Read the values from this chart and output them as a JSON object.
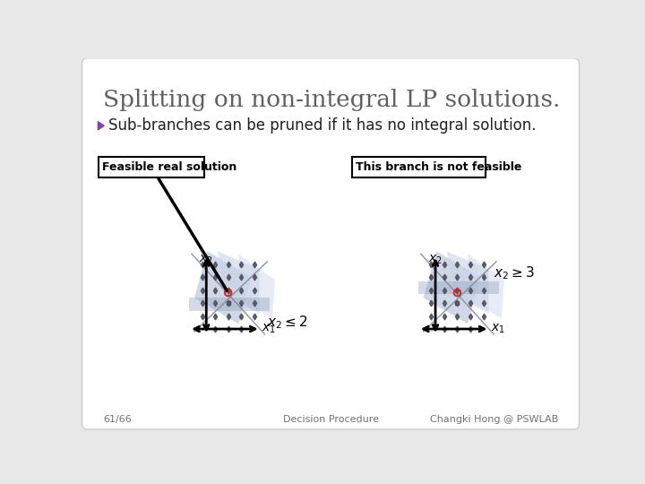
{
  "title": "Splitting on non-integral LP solutions.",
  "subtitle": "Sub-branches can be pruned if it has no integral solution.",
  "bg_color": "#e8e8e8",
  "slide_bg": "#ffffff",
  "title_color": "#606060",
  "subtitle_color": "#202020",
  "left_label": "Feasible real solution",
  "right_label": "This branch is not feasible",
  "footer_left": "61/66",
  "footer_center": "Decision Procedure",
  "footer_right": "Changki Hong @ PSWLAB",
  "poly_color1": "#b8c4d8",
  "poly_color2": "#c8d4e8",
  "poly_color3": "#d0d8ec",
  "band_color": "#8898b8",
  "dot_color": "#505060",
  "axis_color": "#000000",
  "line_color": "#808898",
  "line_color2": "#a0a8b8"
}
